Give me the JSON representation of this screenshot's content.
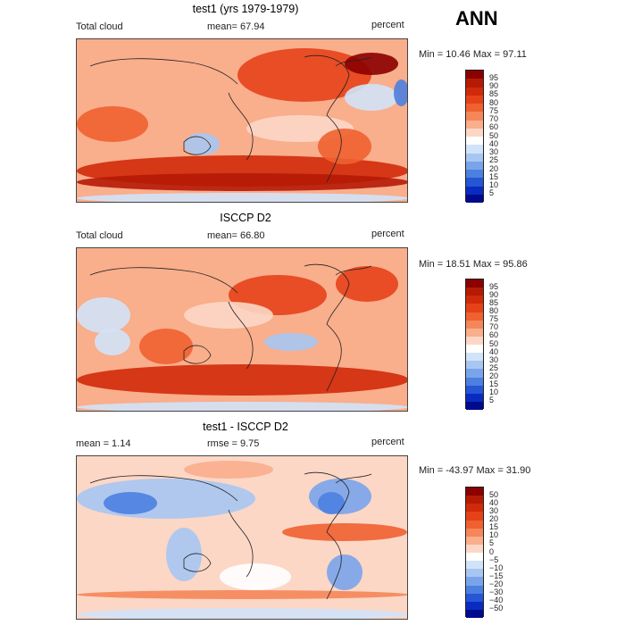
{
  "season": "ANN",
  "panels": [
    {
      "title": "test1 (yrs 1979-1979)",
      "left_label": "Total cloud",
      "center_label": "mean=  67.94",
      "right_label": "percent",
      "minmax": "Min =  10.46 Max =  97.11",
      "levels": [
        "95",
        "90",
        "85",
        "80",
        "75",
        "70",
        "60",
        "50",
        "40",
        "30",
        "25",
        "20",
        "15",
        "10",
        "5"
      ],
      "colors": [
        "#8b0000",
        "#b51a05",
        "#d02a0a",
        "#e5421a",
        "#ef6130",
        "#f58659",
        "#f9ae8c",
        "#fcd7c6",
        "#ffffff",
        "#d1e3f8",
        "#a7c6f2",
        "#7aa4ea",
        "#4c80e0",
        "#2556d4",
        "#0a2bbf",
        "#000a8c"
      ]
    },
    {
      "title": "ISCCP D2",
      "left_label": "Total cloud",
      "center_label": "mean=  66.80",
      "right_label": "percent",
      "minmax": "Min =  18.51 Max =  95.86",
      "levels": [
        "95",
        "90",
        "85",
        "80",
        "75",
        "70",
        "60",
        "50",
        "40",
        "30",
        "25",
        "20",
        "15",
        "10",
        "5"
      ],
      "colors": [
        "#8b0000",
        "#b51a05",
        "#d02a0a",
        "#e5421a",
        "#ef6130",
        "#f58659",
        "#f9ae8c",
        "#fcd7c6",
        "#ffffff",
        "#d1e3f8",
        "#a7c6f2",
        "#7aa4ea",
        "#4c80e0",
        "#2556d4",
        "#0a2bbf",
        "#000a8c"
      ]
    },
    {
      "title": "test1 - ISCCP D2",
      "left_label": "mean =    1.14",
      "center_label": "rmse =    9.75",
      "right_label": "percent",
      "minmax": "Min = -43.97 Max =  31.90",
      "levels": [
        "50",
        "40",
        "30",
        "20",
        "15",
        "10",
        "5",
        "0",
        "−5",
        "−10",
        "−15",
        "−20",
        "−30",
        "−40",
        "−50"
      ],
      "colors": [
        "#8b0000",
        "#b51a05",
        "#d02a0a",
        "#e5421a",
        "#ef6130",
        "#f58659",
        "#f9ae8c",
        "#fcd7c6",
        "#ffffff",
        "#d1e3f8",
        "#a7c6f2",
        "#7aa4ea",
        "#4c80e0",
        "#2556d4",
        "#0a2bbf",
        "#000a8c"
      ]
    }
  ]
}
